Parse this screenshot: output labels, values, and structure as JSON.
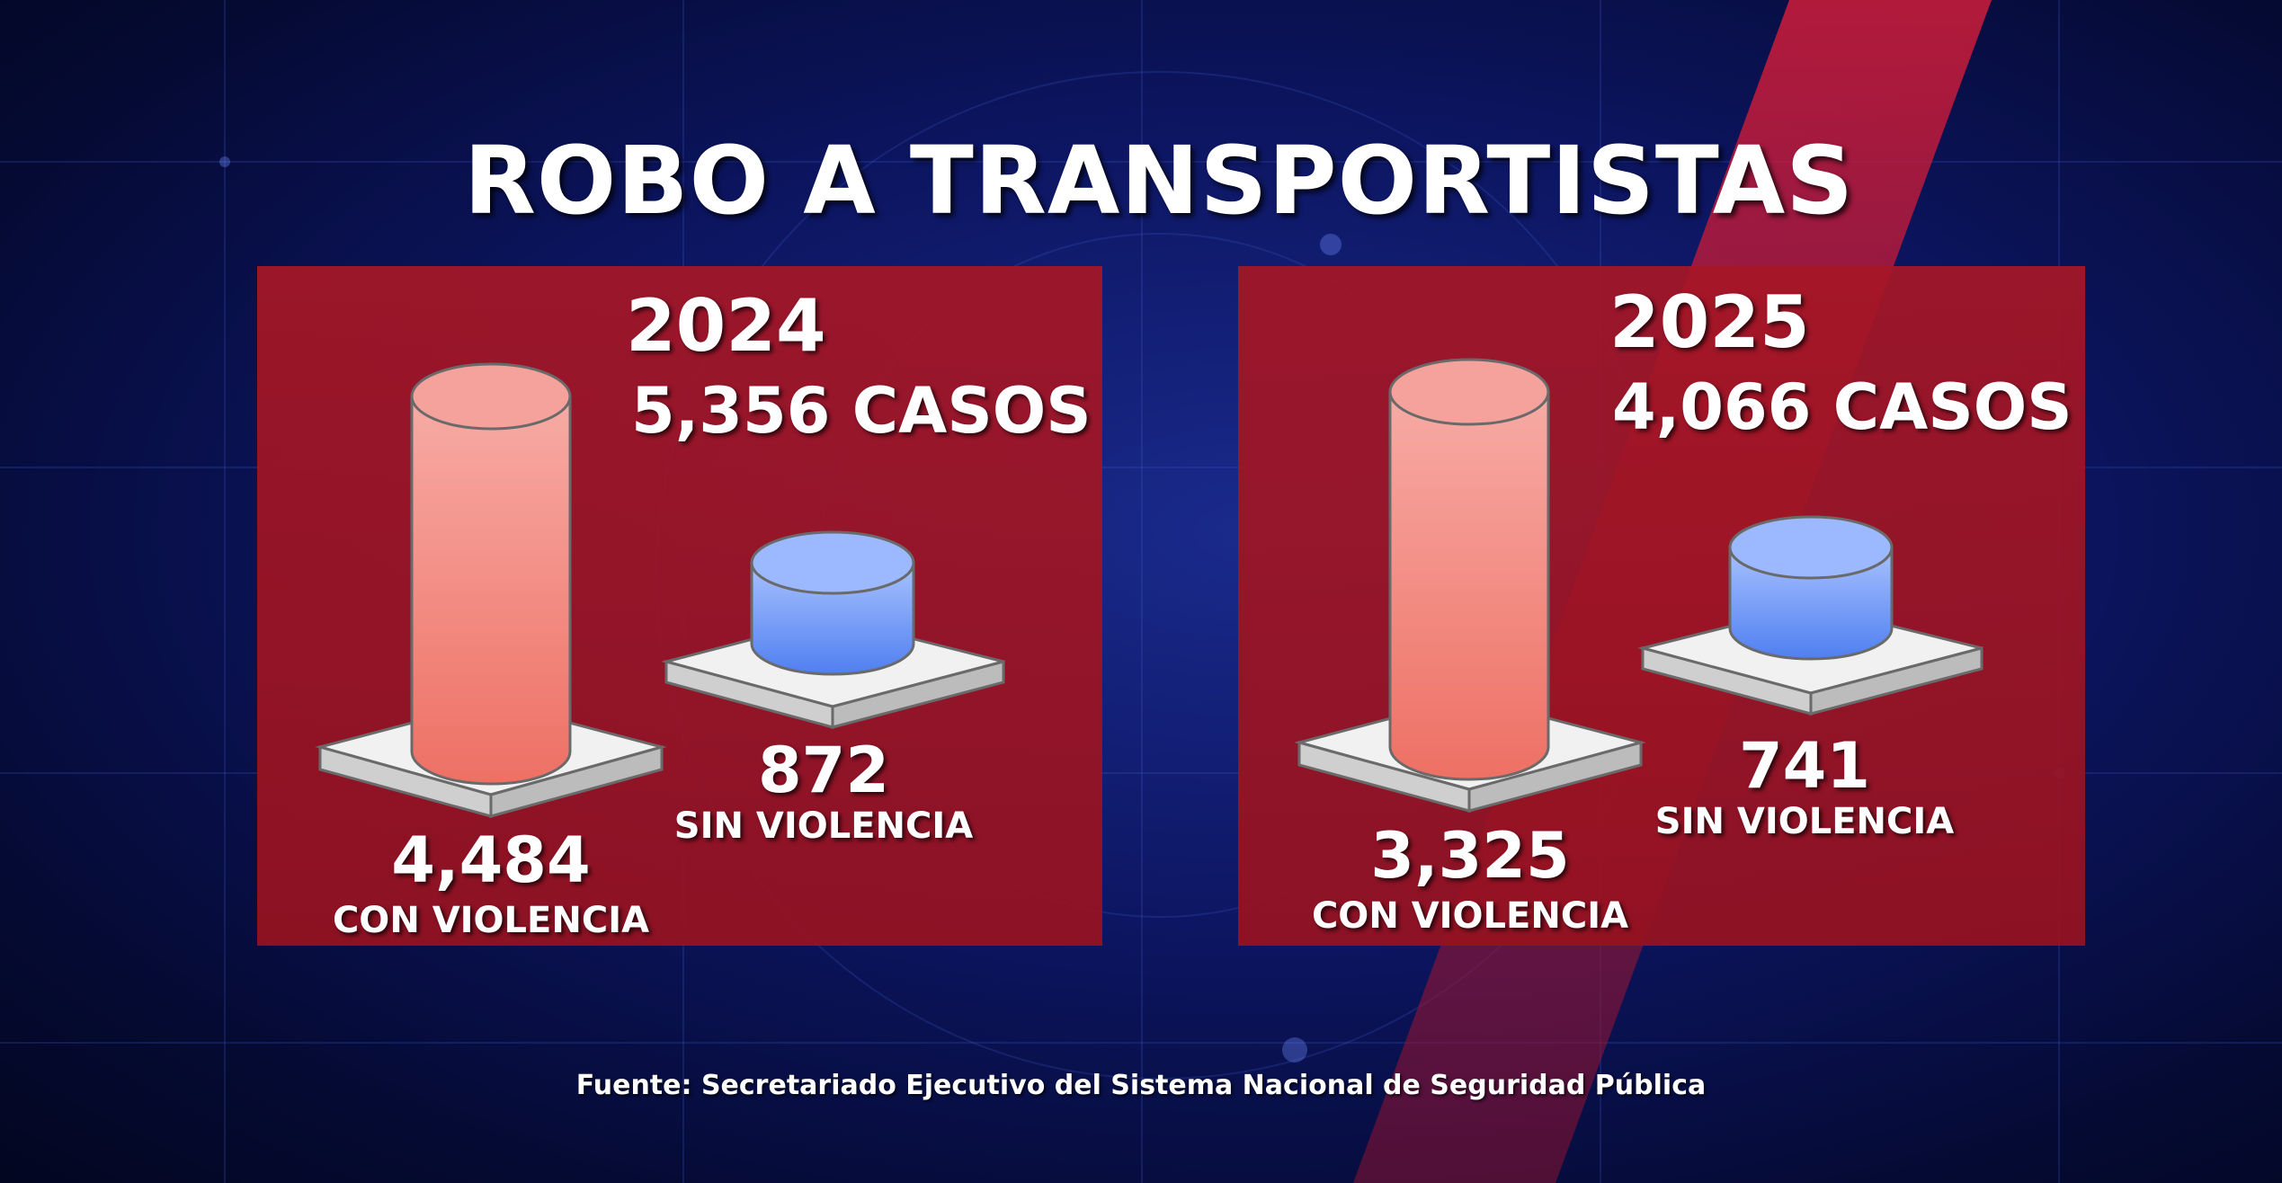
{
  "title": "ROBO A TRANSPORTISTAS",
  "source": "Fuente: Secretariado Ejecutivo del Sistema Nacional de Seguridad Pública",
  "colors": {
    "panel": "#a31626",
    "con_violencia": "#f07a70",
    "sin_violencia": "#5e8cf2",
    "text": "#ffffff",
    "background": "#0c1560"
  },
  "panels": [
    {
      "year": "2024",
      "total": "5,356 CASOS",
      "con": {
        "value": "4,484",
        "label": "CON VIOLENCIA"
      },
      "sin": {
        "value": "872",
        "label": "SIN VIOLENCIA"
      }
    },
    {
      "year": "2025",
      "total": "4,066 CASOS",
      "con": {
        "value": "3,325",
        "label": "CON VIOLENCIA"
      },
      "sin": {
        "value": "741",
        "label": "SIN VIOLENCIA"
      }
    }
  ],
  "chart_data": {
    "type": "bar",
    "title": "ROBO A TRANSPORTISTAS",
    "categories": [
      "2024",
      "2025"
    ],
    "totals": [
      5356,
      4066
    ],
    "series": [
      {
        "name": "CON VIOLENCIA",
        "values": [
          4484,
          3325
        ]
      },
      {
        "name": "SIN VIOLENCIA",
        "values": [
          872,
          741
        ]
      }
    ]
  }
}
